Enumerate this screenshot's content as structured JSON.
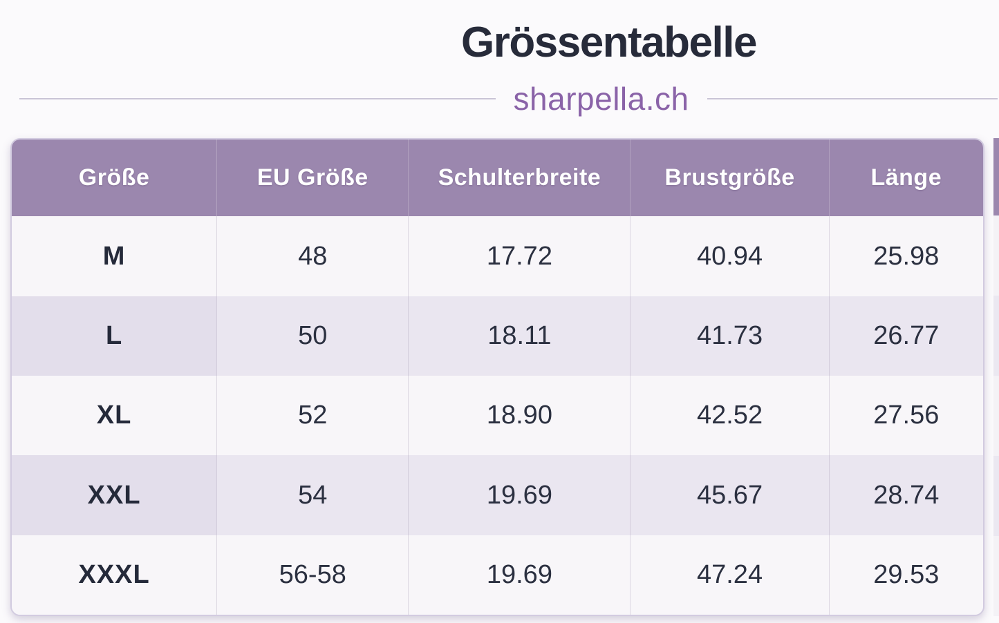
{
  "page": {
    "title": "Grössentabelle",
    "subtitle": "sharpella.ch"
  },
  "colors": {
    "header_bg": "#9b87ae",
    "header_text": "#ffffff",
    "row_odd_bg": "#f8f6f9",
    "row_even_bg": "#eae6f0",
    "title_text": "#272b3a",
    "subtitle_text": "#8a63a8",
    "divider_line": "#c9c5d6",
    "table_border": "#d2cbe0",
    "cell_text": "#2b3040"
  },
  "table": {
    "columns": [
      "Größe",
      "EU Größe",
      "Schulterbreite",
      "Brustgröße",
      "Länge"
    ],
    "rows": [
      [
        "M",
        "48",
        "17.72",
        "40.94",
        "25.98"
      ],
      [
        "L",
        "50",
        "18.11",
        "41.73",
        "26.77"
      ],
      [
        "XL",
        "52",
        "18.90",
        "42.52",
        "27.56"
      ],
      [
        "XXL",
        "54",
        "19.69",
        "45.67",
        "28.74"
      ],
      [
        "XXXL",
        "56-58",
        "19.69",
        "47.24",
        "29.53"
      ]
    ]
  }
}
